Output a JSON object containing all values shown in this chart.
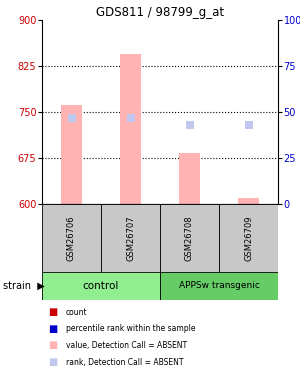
{
  "title": "GDS811 / 98799_g_at",
  "samples": [
    "GSM26706",
    "GSM26707",
    "GSM26708",
    "GSM26709"
  ],
  "groups": [
    "control",
    "control",
    "APPSw transgenic",
    "APPSw transgenic"
  ],
  "ylim_left": [
    600,
    900
  ],
  "ylim_right": [
    0,
    100
  ],
  "yticks_left": [
    600,
    675,
    750,
    825,
    900
  ],
  "yticks_right": [
    0,
    25,
    50,
    75,
    100
  ],
  "dotted_lines": [
    675,
    750,
    825
  ],
  "bar_values": [
    762,
    845,
    683,
    610
  ],
  "rank_values": [
    47,
    47,
    43,
    43
  ],
  "bar_color_absent": "#FFB3B3",
  "rank_color_absent": "#C0C8F0",
  "count_color": "#CC0000",
  "rank_present_color": "#0000CC",
  "left_axis_color": "#CC0000",
  "right_axis_color": "#0000CC",
  "group_colors": {
    "control": "#90EE90",
    "APPSw transgenic": "#66CC66"
  },
  "bar_width": 0.35,
  "rank_marker_size": 6,
  "background_color": "#FFFFFF",
  "label_bg": "#C8C8C8",
  "legend_items": [
    {
      "color": "#CC0000",
      "label": "count"
    },
    {
      "color": "#0000CC",
      "label": "percentile rank within the sample"
    },
    {
      "color": "#FFB3B3",
      "label": "value, Detection Call = ABSENT"
    },
    {
      "color": "#C0C8F0",
      "label": "rank, Detection Call = ABSENT"
    }
  ]
}
